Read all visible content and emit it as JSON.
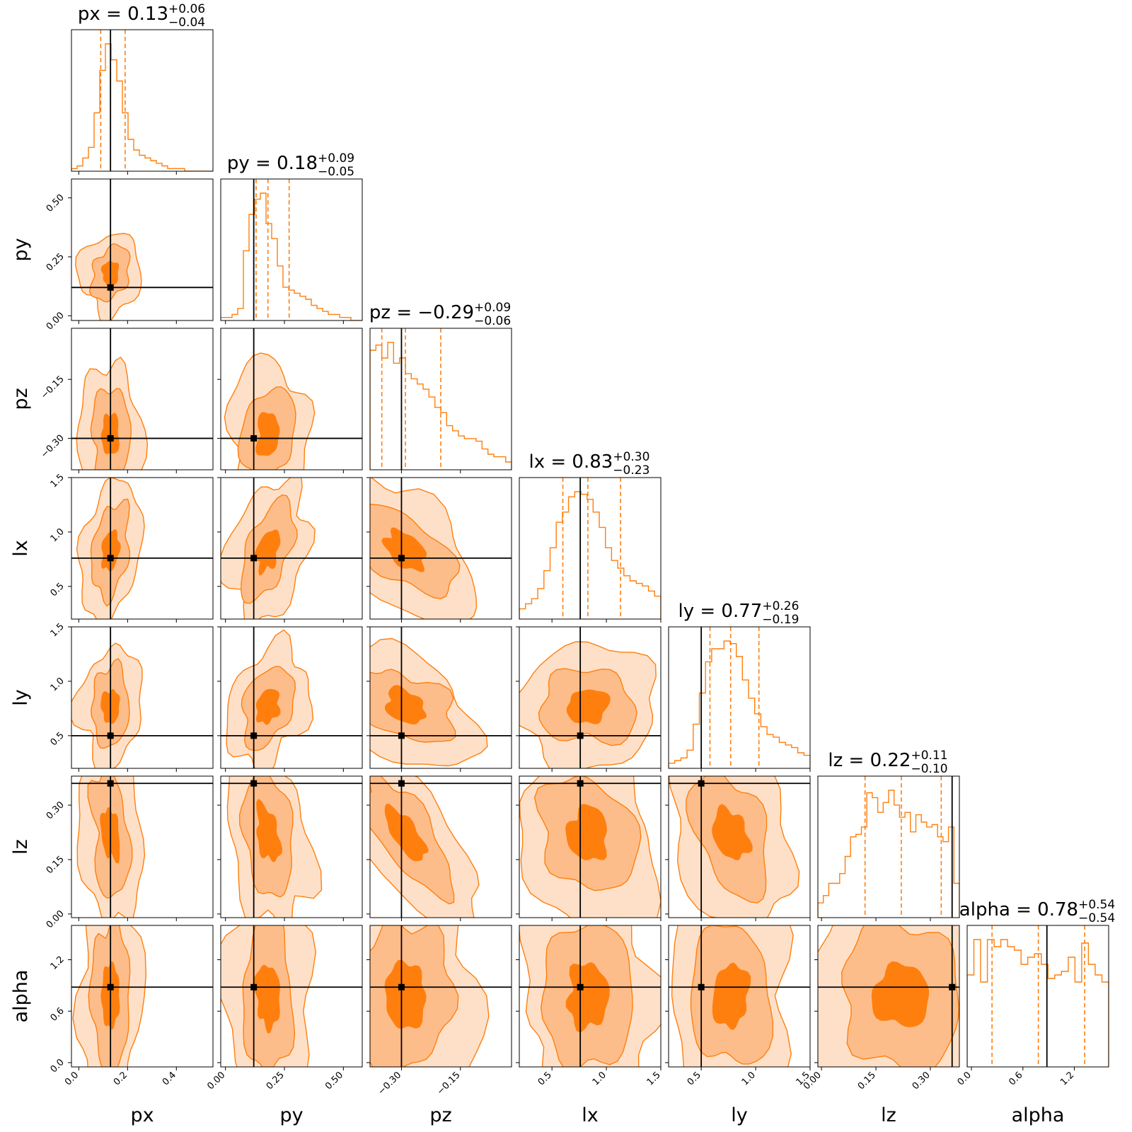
{
  "chart_data": {
    "type": "corner",
    "params": [
      {
        "name": "px",
        "label": "px",
        "truth": 0.13,
        "median": 0.13,
        "plus": "0.06",
        "minus": "0.04",
        "q16": 0.09,
        "q84": 0.19,
        "range": [
          -0.03,
          0.55
        ],
        "ticks": [
          0.0,
          0.2,
          0.4
        ],
        "ticklabels": [
          "0.0",
          "0.2",
          "0.4"
        ],
        "title_prefix": "px = ",
        "title_value": "0.13",
        "title_plus": "+0.06",
        "title_minus": "−0.04"
      },
      {
        "name": "py",
        "label": "py",
        "truth": 0.12,
        "median": 0.18,
        "plus": "0.09",
        "minus": "0.05",
        "q16": 0.13,
        "q84": 0.27,
        "range": [
          -0.02,
          0.58
        ],
        "ticks": [
          0.0,
          0.25,
          0.5
        ],
        "ticklabels": [
          "0.00",
          "0.25",
          "0.50"
        ],
        "title_prefix": "py = ",
        "title_value": "0.18",
        "title_plus": "+0.09",
        "title_minus": "−0.05"
      },
      {
        "name": "pz",
        "label": "pz",
        "truth": -0.3,
        "median": -0.29,
        "plus": "0.09",
        "minus": "0.06",
        "q16": -0.35,
        "q84": -0.2,
        "range": [
          -0.38,
          -0.02
        ],
        "ticks": [
          -0.3,
          -0.15
        ],
        "ticklabels": [
          "−0.30",
          "−0.15"
        ],
        "title_prefix": "pz = ",
        "title_value": "−0.29",
        "title_plus": "+0.09",
        "title_minus": "−0.06"
      },
      {
        "name": "lx",
        "label": "lx",
        "truth": 0.76,
        "median": 0.83,
        "plus": "0.30",
        "minus": "0.23",
        "q16": 0.6,
        "q84": 1.13,
        "range": [
          0.2,
          1.5
        ],
        "ticks": [
          0.5,
          1.0,
          1.5
        ],
        "ticklabels": [
          "0.5",
          "1.0",
          "1.5"
        ],
        "title_prefix": "lx = ",
        "title_value": "0.83",
        "title_plus": "+0.30",
        "title_minus": "−0.23"
      },
      {
        "name": "ly",
        "label": "ly",
        "truth": 0.5,
        "median": 0.77,
        "plus": "0.26",
        "minus": "0.19",
        "q16": 0.58,
        "q84": 1.03,
        "range": [
          0.2,
          1.5
        ],
        "ticks": [
          0.5,
          1.0,
          1.5
        ],
        "ticklabels": [
          "0.5",
          "1.0",
          "1.5"
        ],
        "title_prefix": "ly = ",
        "title_value": "0.77",
        "title_plus": "+0.26",
        "title_minus": "−0.19"
      },
      {
        "name": "lz",
        "label": "lz",
        "truth": 0.36,
        "median": 0.22,
        "plus": "0.11",
        "minus": "0.10",
        "q16": 0.12,
        "q84": 0.33,
        "range": [
          -0.01,
          0.38
        ],
        "ticks": [
          0.0,
          0.15,
          0.3
        ],
        "ticklabels": [
          "0.00",
          "0.15",
          "0.30"
        ],
        "title_prefix": "lz = ",
        "title_value": "0.22",
        "title_plus": "+0.11",
        "title_minus": "−0.10"
      },
      {
        "name": "alpha",
        "label": "alpha",
        "truth": 0.88,
        "median": 0.78,
        "plus": "0.54",
        "minus": "0.54",
        "q16": 0.24,
        "q84": 1.32,
        "range": [
          -0.05,
          1.6
        ],
        "ticks": [
          0.0,
          0.6,
          1.2
        ],
        "ticklabels": [
          "0.0",
          "0.6",
          "1.2"
        ],
        "title_prefix": "alpha = ",
        "title_value": "0.78",
        "title_plus": "+0.54",
        "title_minus": "−0.54"
      }
    ],
    "hist": {
      "px": [
        1,
        2,
        5,
        9,
        22,
        38,
        48,
        42,
        34,
        22,
        12,
        8,
        6,
        5,
        4,
        3,
        2,
        1,
        1,
        1,
        0,
        0,
        0,
        0,
        0
      ],
      "py": [
        1,
        1,
        2,
        4,
        23,
        35,
        40,
        42,
        32,
        27,
        18,
        11,
        10,
        9,
        8,
        7,
        5,
        4,
        3,
        2,
        2,
        1,
        1,
        0,
        0
      ],
      "pz": [
        46,
        48,
        43,
        49,
        41,
        43,
        37,
        35,
        33,
        31,
        28,
        24,
        22,
        17,
        15,
        13,
        12,
        12,
        11,
        8,
        6,
        5,
        5,
        3
      ],
      "lx": [
        4,
        6,
        8,
        12,
        19,
        28,
        38,
        42,
        48,
        50,
        49,
        47,
        42,
        36,
        28,
        23,
        20,
        17,
        15,
        14,
        13,
        11,
        9
      ],
      "ly": [
        2,
        3,
        4,
        7,
        17,
        29,
        41,
        46,
        46,
        49,
        48,
        43,
        34,
        27,
        21,
        16,
        13,
        12,
        10,
        9,
        8,
        6,
        5
      ],
      "lz": [
        6,
        9,
        14,
        14,
        18,
        25,
        33,
        34,
        37,
        51,
        49,
        43,
        47,
        52,
        46,
        41,
        43,
        35,
        42,
        39,
        37,
        38,
        33,
        31,
        37,
        14
      ],
      "alpha": [
        26,
        36,
        24,
        36,
        34,
        36,
        34,
        33,
        29,
        31,
        32,
        29,
        25,
        26,
        27,
        31,
        24,
        35,
        29,
        26,
        24
      ]
    },
    "colors": {
      "line": "#ff7f0e",
      "fill_outer": "#fee0c8",
      "fill_mid": "#fdbd8a",
      "fill_inner": "#ff7f0e",
      "truth": "#000000"
    }
  }
}
